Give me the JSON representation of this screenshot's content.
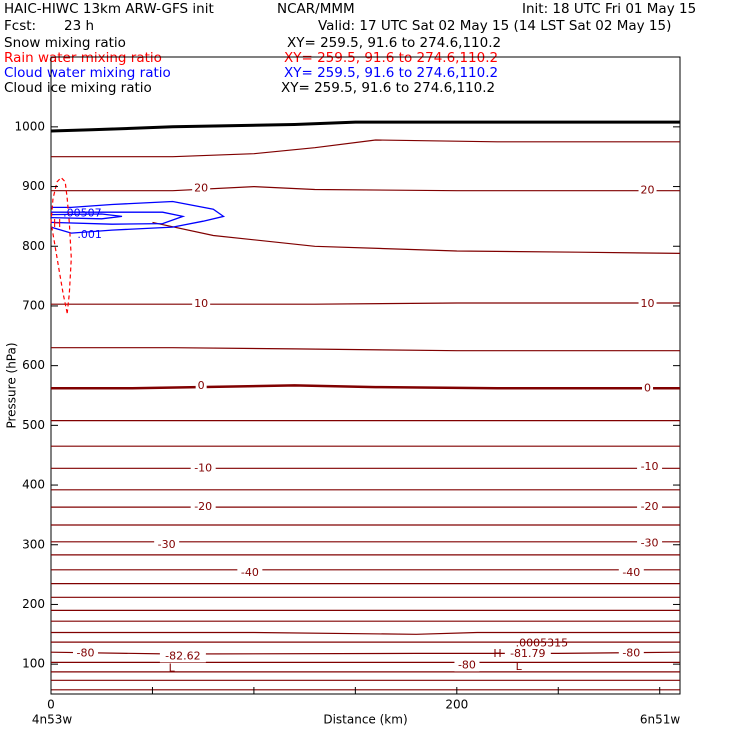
{
  "header": {
    "model": "HAIC-HIWC 13km ARW-GFS init",
    "org": "NCAR/MMM",
    "init": "Init: 18 UTC Fri 01 May 15",
    "fcst_label": "Fcst:",
    "fcst_value": "23 h",
    "valid": "Valid: 17 UTC Sat 02 May 15 (14 LST Sat 02 May 15)"
  },
  "fields": [
    {
      "name": "Snow mixing ratio",
      "xy": "XY= 259.5, 91.6 to 274.6,110.2",
      "color": "#000000"
    },
    {
      "name": "Rain water mixing ratio",
      "xy": "XY= 259.5, 91.6 to 274.6,110.2",
      "color": "#ff0000"
    },
    {
      "name": "Cloud water mixing ratio",
      "xy": "XY= 259.5, 91.6 to 274.6,110.2",
      "color": "#0000ff"
    },
    {
      "name": "Cloud ice mixing ratio",
      "xy": "XY= 259.5, 91.6 to 274.6,110.2",
      "color": "#000000"
    }
  ],
  "colors": {
    "temperature": "#800000",
    "cloud_water": "#0000ff",
    "rain_water": "#ff0000",
    "ground": "#000000"
  },
  "chart_data": {
    "type": "line",
    "title": "",
    "xlabel": "Distance (km)",
    "ylabel": "Pressure (hPa)",
    "xlim": [
      0,
      310
    ],
    "ylim": [
      1050,
      50
    ],
    "x_ticks": [
      {
        "value": 0,
        "label": "0"
      },
      {
        "value": 200,
        "label": "200"
      }
    ],
    "y_ticks": [
      100,
      200,
      300,
      400,
      500,
      600,
      700,
      800,
      900,
      1000
    ],
    "endpoint_left": "4n53w",
    "endpoint_right": "6n51w",
    "isotherm_labels": [
      {
        "text": "-80",
        "x": 17,
        "p": 118
      },
      {
        "text": "-82.62",
        "x": 65,
        "p": 113
      },
      {
        "text": "-80",
        "x": 205,
        "p": 98
      },
      {
        "text": "-81.79",
        "x": 235,
        "p": 117
      },
      {
        "text": "-80",
        "x": 286,
        "p": 118
      },
      {
        "text": "-40",
        "x": 98,
        "p": 253
      },
      {
        "text": "-40",
        "x": 286,
        "p": 253
      },
      {
        "text": "-30",
        "x": 57,
        "p": 300
      },
      {
        "text": "-30",
        "x": 295,
        "p": 302
      },
      {
        "text": "-20",
        "x": 75,
        "p": 363
      },
      {
        "text": "-20",
        "x": 295,
        "p": 363
      },
      {
        "text": "-10",
        "x": 75,
        "p": 428
      },
      {
        "text": "-10",
        "x": 295,
        "p": 430
      },
      {
        "text": "0",
        "x": 74,
        "p": 566
      },
      {
        "text": "0",
        "x": 294,
        "p": 562
      },
      {
        "text": "10",
        "x": 74,
        "p": 703
      },
      {
        "text": "10",
        "x": 294,
        "p": 703
      },
      {
        "text": "20",
        "x": 74,
        "p": 897
      },
      {
        "text": "20",
        "x": 294,
        "p": 893
      }
    ],
    "extrema": [
      {
        "text": "L",
        "x": 58,
        "p": 93
      },
      {
        "text": "L",
        "x": 229,
        "p": 95
      },
      {
        "text": "H",
        "x": 218,
        "p": 117
      },
      {
        "text": "H",
        "x": 1,
        "p": 837
      },
      {
        "text": ".0005315",
        "x": 229,
        "p": 135
      },
      {
        "text": ".001",
        "x": 13,
        "p": 819
      },
      {
        "text": ".00507",
        "x": 6,
        "p": 855
      }
    ],
    "temperature_contours": [
      {
        "x": [
          0,
          310
        ],
        "p": [
          57,
          57
        ]
      },
      {
        "x": [
          0,
          310
        ],
        "p": [
          73,
          73
        ]
      },
      {
        "x": [
          0,
          310
        ],
        "p": [
          87,
          87
        ]
      },
      {
        "x": [
          0,
          310
        ],
        "p": [
          103,
          103
        ]
      },
      {
        "x": [
          0,
          60,
          180,
          250,
          310
        ],
        "p": [
          120,
          117,
          118,
          118,
          120
        ]
      },
      {
        "x": [
          0,
          310
        ],
        "p": [
          137,
          137
        ]
      },
      {
        "x": [
          0,
          100,
          180,
          210,
          310
        ],
        "p": [
          153,
          153,
          150,
          153,
          153
        ]
      },
      {
        "x": [
          0,
          310
        ],
        "p": [
          172,
          172
        ]
      },
      {
        "x": [
          0,
          310
        ],
        "p": [
          190,
          190
        ]
      },
      {
        "x": [
          0,
          310
        ],
        "p": [
          212,
          212
        ]
      },
      {
        "x": [
          0,
          310
        ],
        "p": [
          235,
          235
        ]
      },
      {
        "x": [
          0,
          310
        ],
        "p": [
          258,
          258
        ]
      },
      {
        "x": [
          0,
          310
        ],
        "p": [
          283,
          283
        ]
      },
      {
        "x": [
          0,
          310
        ],
        "p": [
          305,
          305
        ]
      },
      {
        "x": [
          0,
          310
        ],
        "p": [
          333,
          333
        ]
      },
      {
        "x": [
          0,
          310
        ],
        "p": [
          363,
          363
        ]
      },
      {
        "x": [
          0,
          310
        ],
        "p": [
          392,
          392
        ]
      },
      {
        "x": [
          0,
          310
        ],
        "p": [
          428,
          428
        ]
      },
      {
        "x": [
          0,
          310
        ],
        "p": [
          465,
          465
        ]
      },
      {
        "x": [
          0,
          310
        ],
        "p": [
          508,
          508
        ]
      },
      {
        "x": [
          0,
          40,
          90,
          120,
          160,
          220,
          310
        ],
        "p": [
          562,
          562,
          565,
          567,
          564,
          562,
          562
        ]
      },
      {
        "x": [
          0,
          60,
          120,
          200,
          310
        ],
        "p": [
          630,
          630,
          628,
          625,
          625
        ]
      },
      {
        "x": [
          0,
          60,
          130,
          200,
          310
        ],
        "p": [
          703,
          703,
          703,
          705,
          705
        ]
      },
      {
        "x": [
          50,
          80,
          130,
          200,
          260,
          310
        ],
        "p": [
          840,
          818,
          800,
          792,
          790,
          788
        ]
      },
      {
        "x": [
          0,
          60,
          100,
          130,
          200,
          310
        ],
        "p": [
          893,
          893,
          900,
          895,
          893,
          893
        ]
      },
      {
        "x": [
          0,
          60,
          100,
          130,
          160,
          220,
          310
        ],
        "p": [
          950,
          950,
          955,
          965,
          978,
          975,
          975
        ]
      }
    ],
    "ground_line": {
      "x": [
        0,
        20,
        60,
        120,
        150,
        200,
        310
      ],
      "p": [
        993,
        995,
        1000,
        1004,
        1008,
        1008,
        1008
      ]
    },
    "cloud_water_contours": [
      {
        "x": [
          0,
          10,
          30,
          60,
          75,
          85,
          80,
          60,
          30,
          10,
          0
        ],
        "p": [
          832,
          822,
          827,
          832,
          842,
          850,
          862,
          875,
          870,
          865,
          865
        ]
      },
      {
        "x": [
          0,
          30,
          55,
          65,
          55,
          30,
          0
        ],
        "p": [
          840,
          837,
          838,
          850,
          857,
          857,
          857
        ]
      },
      {
        "x": [
          0,
          25,
          35,
          25,
          0
        ],
        "p": [
          848,
          846,
          850,
          854,
          853
        ]
      }
    ],
    "rain_water_contours": [
      {
        "x": [
          8,
          6,
          4,
          2,
          0,
          1,
          3,
          5,
          7,
          8,
          9,
          10,
          9,
          8
        ],
        "p": [
          688,
          720,
          760,
          800,
          840,
          880,
          908,
          915,
          908,
          880,
          840,
          780,
          720,
          688
        ]
      }
    ]
  }
}
